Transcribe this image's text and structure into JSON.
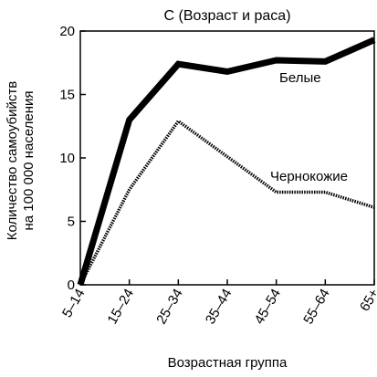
{
  "chart_data": {
    "type": "line",
    "title": "С (Возраст и раса)",
    "xlabel": "Возрастная группа",
    "ylabel_lines": [
      "Количество самоубийств",
      "на 100 000 населения"
    ],
    "categories": [
      "5–14",
      "15–24",
      "25–34",
      "35–44",
      "45–54",
      "55–64",
      "65+"
    ],
    "ylim": [
      0,
      20
    ],
    "yticks": [
      "0",
      "5",
      "10",
      "15",
      "20"
    ],
    "grid": false,
    "series": [
      {
        "name": "Белые",
        "values": [
          0,
          13,
          17.4,
          16.8,
          17.7,
          17.6,
          19.3
        ],
        "color": "#000000"
      },
      {
        "name": "Чернокожие",
        "values": [
          0,
          7.5,
          12.9,
          10.1,
          7.3,
          7.3,
          6.1
        ],
        "color": "#000000"
      }
    ]
  }
}
